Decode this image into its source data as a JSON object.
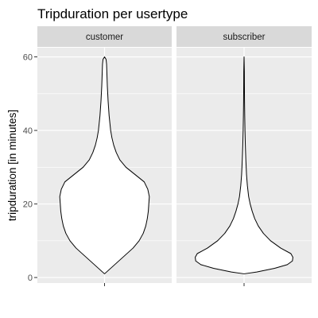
{
  "chart_data": {
    "type": "violin",
    "title": "Tripduration per usertype",
    "xlabel": "",
    "ylabel": "tripduration [in minutes]",
    "ylim": [
      -1.5,
      62.5
    ],
    "yticks": [
      0,
      20,
      40,
      60
    ],
    "grid": true,
    "panels": [
      {
        "name": "customer",
        "min": 1,
        "max": 60,
        "density_profile": [
          {
            "y": 1,
            "half_width": 0.0
          },
          {
            "y": 2,
            "half_width": 0.08
          },
          {
            "y": 4,
            "half_width": 0.24
          },
          {
            "y": 6,
            "half_width": 0.4
          },
          {
            "y": 8,
            "half_width": 0.56
          },
          {
            "y": 10,
            "half_width": 0.68
          },
          {
            "y": 12,
            "half_width": 0.76
          },
          {
            "y": 14,
            "half_width": 0.81
          },
          {
            "y": 16,
            "half_width": 0.84
          },
          {
            "y": 18,
            "half_width": 0.86
          },
          {
            "y": 20,
            "half_width": 0.87
          },
          {
            "y": 22,
            "half_width": 0.88
          },
          {
            "y": 24,
            "half_width": 0.85
          },
          {
            "y": 26,
            "half_width": 0.78
          },
          {
            "y": 28,
            "half_width": 0.6
          },
          {
            "y": 30,
            "half_width": 0.42
          },
          {
            "y": 32,
            "half_width": 0.3
          },
          {
            "y": 34,
            "half_width": 0.23
          },
          {
            "y": 36,
            "half_width": 0.18
          },
          {
            "y": 38,
            "half_width": 0.145
          },
          {
            "y": 40,
            "half_width": 0.12
          },
          {
            "y": 44,
            "half_width": 0.09
          },
          {
            "y": 48,
            "half_width": 0.07
          },
          {
            "y": 52,
            "half_width": 0.055
          },
          {
            "y": 56,
            "half_width": 0.045
          },
          {
            "y": 58,
            "half_width": 0.04
          },
          {
            "y": 59.3,
            "half_width": 0.03
          },
          {
            "y": 60,
            "half_width": 0.0
          }
        ]
      },
      {
        "name": "subscriber",
        "min": 1,
        "max": 60,
        "density_profile": [
          {
            "y": 1,
            "half_width": 0.0
          },
          {
            "y": 1.5,
            "half_width": 0.25
          },
          {
            "y": 2.5,
            "half_width": 0.6
          },
          {
            "y": 3.5,
            "half_width": 0.85
          },
          {
            "y": 4.5,
            "half_width": 0.95
          },
          {
            "y": 5.5,
            "half_width": 0.96
          },
          {
            "y": 6.5,
            "half_width": 0.92
          },
          {
            "y": 8,
            "half_width": 0.72
          },
          {
            "y": 10,
            "half_width": 0.52
          },
          {
            "y": 12,
            "half_width": 0.38
          },
          {
            "y": 14,
            "half_width": 0.28
          },
          {
            "y": 16,
            "half_width": 0.21
          },
          {
            "y": 18,
            "half_width": 0.16
          },
          {
            "y": 20,
            "half_width": 0.12
          },
          {
            "y": 22,
            "half_width": 0.09
          },
          {
            "y": 25,
            "half_width": 0.065
          },
          {
            "y": 28,
            "half_width": 0.048
          },
          {
            "y": 32,
            "half_width": 0.035
          },
          {
            "y": 36,
            "half_width": 0.025
          },
          {
            "y": 40,
            "half_width": 0.018
          },
          {
            "y": 44,
            "half_width": 0.013
          },
          {
            "y": 48,
            "half_width": 0.009
          },
          {
            "y": 52,
            "half_width": 0.007
          },
          {
            "y": 56,
            "half_width": 0.006
          },
          {
            "y": 60,
            "half_width": 0.0
          }
        ]
      }
    ]
  },
  "colors": {
    "panel_background": "#ebebeb",
    "strip_background": "#d9d9d9",
    "grid_major": "#ffffff",
    "violin_fill": "#ffffff",
    "violin_outline": "#000000"
  }
}
